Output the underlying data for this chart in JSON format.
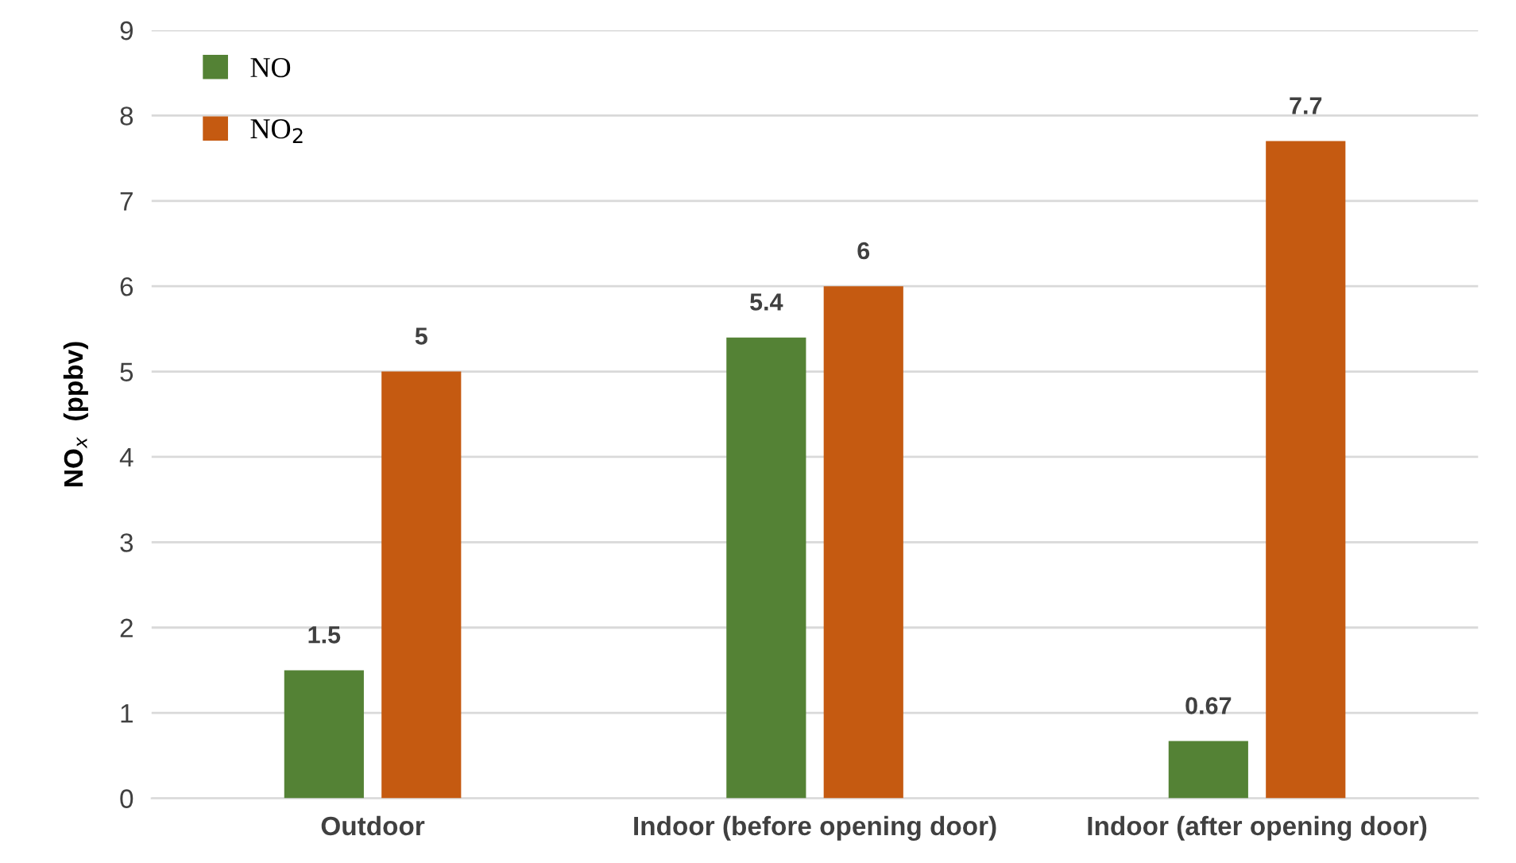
{
  "chart_data": {
    "type": "bar",
    "ylabel": "NO$_{x}$  (ppbv)",
    "categories": [
      "Outdoor",
      "Indoor (before opening door)",
      "Indoor (after opening door)"
    ],
    "series": [
      {
        "name": "NO",
        "color": "#548235",
        "values": [
          1.5,
          5.4,
          0.67
        ]
      },
      {
        "name": "NO$_{2}$",
        "color": "#c55a11",
        "values": [
          5,
          6,
          7.7
        ]
      }
    ],
    "ylim": [
      0,
      9
    ],
    "yticks": [
      0,
      1,
      2,
      3,
      4,
      5,
      6,
      7,
      8,
      9
    ],
    "grid": "y",
    "legend": "top left",
    "data_labels": true
  }
}
